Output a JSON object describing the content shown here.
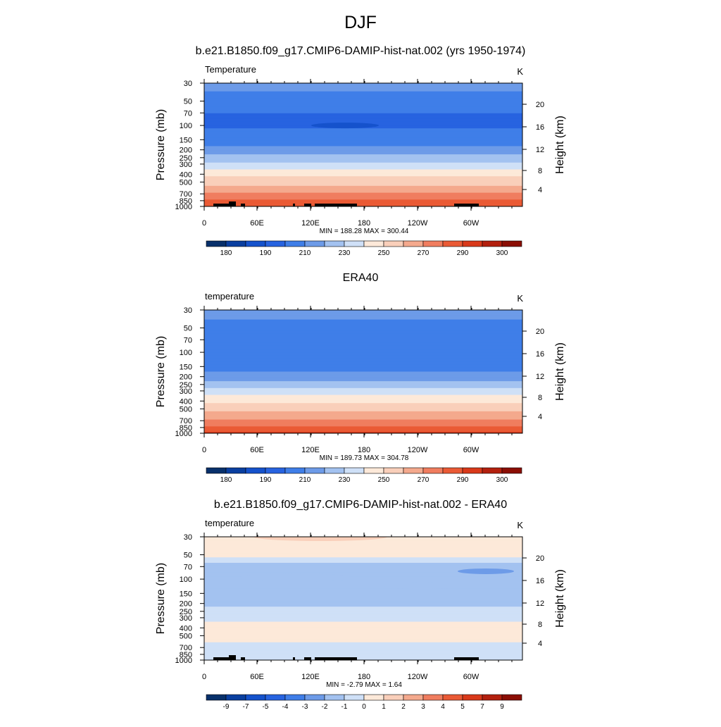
{
  "figure": {
    "title": "DJF",
    "panel_titles": [
      "b.e21.B1850.f09_g17.CMIP6-DAMIP-hist-nat.002 (yrs 1950-1974)",
      "ERA40",
      "b.e21.B1850.f09_g17.CMIP6-DAMIP-hist-nat.002 - ERA40"
    ]
  },
  "chart_data": [
    {
      "type": "heatmap",
      "title": "b.e21.B1850.f09_g17.CMIP6-DAMIP-hist-nat.002 (yrs 1950-1974)",
      "left_string": "Temperature",
      "units": "K",
      "ylabel": "Pressure (mb)",
      "ylabel_right": "Height (km)",
      "x_ticks": [
        "0",
        "60E",
        "120E",
        "180",
        "120W",
        "60W"
      ],
      "y_ticks": [
        "30",
        "50",
        "70",
        "100",
        "150",
        "200",
        "250",
        "300",
        "400",
        "500",
        "700",
        "850",
        "1000"
      ],
      "y_ticks_right": [
        "20",
        "16",
        "12",
        "8",
        "4"
      ],
      "stats": "MIN = 188.28  MAX = 300.44",
      "colorbar_labels": [
        "180",
        "190",
        "210",
        "230",
        "250",
        "270",
        "290",
        "300"
      ],
      "colorbar_colors": [
        "#08306b",
        "#0a3fa0",
        "#1552cc",
        "#2763e0",
        "#3f7ee8",
        "#6d9be8",
        "#a3c2f0",
        "#cfe0f7",
        "#fde9d9",
        "#f9cfba",
        "#f4a98d",
        "#f07d5f",
        "#ea5a35",
        "#d9391a",
        "#b3200e",
        "#8b0e04"
      ],
      "profile": [
        {
          "p": 30,
          "v": 214
        },
        {
          "p": 50,
          "v": 205
        },
        {
          "p": 70,
          "v": 200
        },
        {
          "p": 100,
          "v": 199
        },
        {
          "p": 150,
          "v": 204
        },
        {
          "p": 200,
          "v": 214
        },
        {
          "p": 250,
          "v": 224
        },
        {
          "p": 300,
          "v": 233
        },
        {
          "p": 400,
          "v": 247
        },
        {
          "p": 500,
          "v": 256
        },
        {
          "p": 700,
          "v": 271
        },
        {
          "p": 850,
          "v": 281
        },
        {
          "p": 1000,
          "v": 290
        }
      ]
    },
    {
      "type": "heatmap",
      "title": "ERA40",
      "left_string": "temperature",
      "units": "K",
      "ylabel": "Pressure (mb)",
      "ylabel_right": "Height (km)",
      "x_ticks": [
        "0",
        "60E",
        "120E",
        "180",
        "120W",
        "60W"
      ],
      "y_ticks": [
        "30",
        "50",
        "70",
        "100",
        "150",
        "200",
        "250",
        "300",
        "400",
        "500",
        "700",
        "850",
        "1000"
      ],
      "y_ticks_right": [
        "20",
        "16",
        "12",
        "8",
        "4"
      ],
      "stats": "MIN = 189.73  MAX = 304.78",
      "colorbar_labels": [
        "180",
        "190",
        "210",
        "230",
        "250",
        "270",
        "290",
        "300"
      ],
      "colorbar_colors": [
        "#08306b",
        "#0a3fa0",
        "#1552cc",
        "#2763e0",
        "#3f7ee8",
        "#6d9be8",
        "#a3c2f0",
        "#cfe0f7",
        "#fde9d9",
        "#f9cfba",
        "#f4a98d",
        "#f07d5f",
        "#ea5a35",
        "#d9391a",
        "#b3200e",
        "#8b0e04"
      ],
      "profile": [
        {
          "p": 30,
          "v": 215
        },
        {
          "p": 50,
          "v": 206
        },
        {
          "p": 70,
          "v": 201
        },
        {
          "p": 100,
          "v": 200
        },
        {
          "p": 150,
          "v": 205
        },
        {
          "p": 200,
          "v": 215
        },
        {
          "p": 250,
          "v": 225
        },
        {
          "p": 300,
          "v": 234
        },
        {
          "p": 400,
          "v": 248
        },
        {
          "p": 500,
          "v": 257
        },
        {
          "p": 700,
          "v": 272
        },
        {
          "p": 850,
          "v": 282
        },
        {
          "p": 1000,
          "v": 292
        }
      ]
    },
    {
      "type": "heatmap",
      "title": "b.e21.B1850.f09_g17.CMIP6-DAMIP-hist-nat.002 - ERA40",
      "left_string": "temperature",
      "units": "K",
      "ylabel": "Pressure (mb)",
      "ylabel_right": "Height (km)",
      "x_ticks": [
        "0",
        "60E",
        "120E",
        "180",
        "120W",
        "60W"
      ],
      "y_ticks": [
        "30",
        "50",
        "70",
        "100",
        "150",
        "200",
        "250",
        "300",
        "400",
        "500",
        "700",
        "850",
        "1000"
      ],
      "y_ticks_right": [
        "20",
        "16",
        "12",
        "8",
        "4"
      ],
      "stats": "MIN =  -2.79  MAX =   1.64",
      "colorbar_labels": [
        "-9",
        "-7",
        "-5",
        "-4",
        "-3",
        "-2",
        "-1",
        "0",
        "1",
        "2",
        "3",
        "4",
        "5",
        "7",
        "9"
      ],
      "colorbar_colors": [
        "#08306b",
        "#0a3fa0",
        "#1552cc",
        "#2763e0",
        "#3f7ee8",
        "#6d9be8",
        "#a3c2f0",
        "#cfe0f7",
        "#fde9d9",
        "#f9cfba",
        "#f4a98d",
        "#f07d5f",
        "#ea5a35",
        "#d9391a",
        "#b3200e",
        "#8b0e04"
      ],
      "profile": [
        {
          "p": 30,
          "v": 0.5
        },
        {
          "p": 50,
          "v": 0.3
        },
        {
          "p": 70,
          "v": -1.5
        },
        {
          "p": 100,
          "v": -1.2
        },
        {
          "p": 150,
          "v": -1.3
        },
        {
          "p": 200,
          "v": -1.2
        },
        {
          "p": 250,
          "v": -0.6
        },
        {
          "p": 300,
          "v": -0.3
        },
        {
          "p": 400,
          "v": 0.4
        },
        {
          "p": 500,
          "v": 0.4
        },
        {
          "p": 700,
          "v": -0.3
        },
        {
          "p": 850,
          "v": -0.5
        },
        {
          "p": 1000,
          "v": -0.5
        }
      ]
    }
  ]
}
